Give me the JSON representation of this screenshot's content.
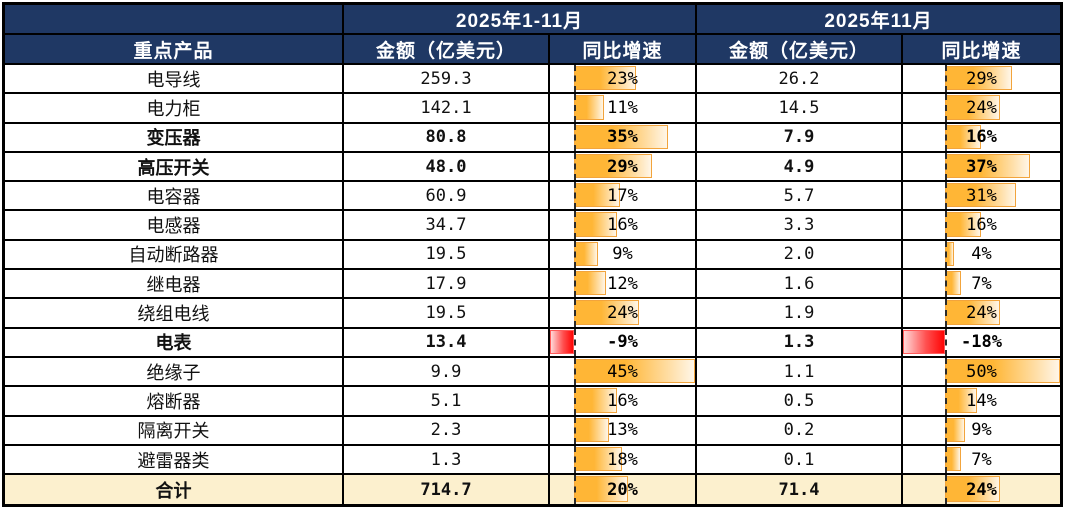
{
  "header": {
    "corner": "",
    "period_ytd": "2025年1-11月",
    "period_month": "2025年11月",
    "col_product": "重点产品",
    "col_amount_ytd": "金额（亿美元）",
    "col_growth_ytd": "同比增速",
    "col_amount_month": "金额（亿美元）",
    "col_growth_month": "同比增速"
  },
  "bars": {
    "ytd": {
      "min": -9,
      "max": 45
    },
    "month": {
      "min": -18,
      "max": 50
    }
  },
  "colors": {
    "header_bg": "#1F3864",
    "header_text": "#FFFFFF",
    "total_row_bg": "#FCF0CE",
    "positive_bar": "#FFB636",
    "positive_bar_border": "#F2A43C",
    "negative_bar": "#FF0505",
    "grid_border": "#000000"
  },
  "rows": [
    {
      "name": "电导线",
      "a1": "259.3",
      "g1": 23,
      "g1_label": "23%",
      "a2": "26.2",
      "g2": 29,
      "g2_label": "29%",
      "bold": false
    },
    {
      "name": "电力柜",
      "a1": "142.1",
      "g1": 11,
      "g1_label": "11%",
      "a2": "14.5",
      "g2": 24,
      "g2_label": "24%",
      "bold": false
    },
    {
      "name": "变压器",
      "a1": "80.8",
      "g1": 35,
      "g1_label": "35%",
      "a2": "7.9",
      "g2": 16,
      "g2_label": "16%",
      "bold": true
    },
    {
      "name": "高压开关",
      "a1": "48.0",
      "g1": 29,
      "g1_label": "29%",
      "a2": "4.9",
      "g2": 37,
      "g2_label": "37%",
      "bold": true
    },
    {
      "name": "电容器",
      "a1": "60.9",
      "g1": 17,
      "g1_label": "17%",
      "a2": "5.7",
      "g2": 31,
      "g2_label": "31%",
      "bold": false
    },
    {
      "name": "电感器",
      "a1": "34.7",
      "g1": 16,
      "g1_label": "16%",
      "a2": "3.3",
      "g2": 16,
      "g2_label": "16%",
      "bold": false
    },
    {
      "name": "自动断路器",
      "a1": "19.5",
      "g1": 9,
      "g1_label": "9%",
      "a2": "2.0",
      "g2": 4,
      "g2_label": "4%",
      "bold": false
    },
    {
      "name": "继电器",
      "a1": "17.9",
      "g1": 12,
      "g1_label": "12%",
      "a2": "1.6",
      "g2": 7,
      "g2_label": "7%",
      "bold": false
    },
    {
      "name": "绕组电线",
      "a1": "19.5",
      "g1": 24,
      "g1_label": "24%",
      "a2": "1.9",
      "g2": 24,
      "g2_label": "24%",
      "bold": false
    },
    {
      "name": "电表",
      "a1": "13.4",
      "g1": -9,
      "g1_label": "-9%",
      "a2": "1.3",
      "g2": -18,
      "g2_label": "-18%",
      "bold": true
    },
    {
      "name": "绝缘子",
      "a1": "9.9",
      "g1": 45,
      "g1_label": "45%",
      "a2": "1.1",
      "g2": 50,
      "g2_label": "50%",
      "bold": false
    },
    {
      "name": "熔断器",
      "a1": "5.1",
      "g1": 16,
      "g1_label": "16%",
      "a2": "0.5",
      "g2": 14,
      "g2_label": "14%",
      "bold": false
    },
    {
      "name": "隔离开关",
      "a1": "2.3",
      "g1": 13,
      "g1_label": "13%",
      "a2": "0.2",
      "g2": 9,
      "g2_label": "9%",
      "bold": false
    },
    {
      "name": "避雷器类",
      "a1": "1.3",
      "g1": 18,
      "g1_label": "18%",
      "a2": "0.1",
      "g2": 7,
      "g2_label": "7%",
      "bold": false
    }
  ],
  "total": {
    "name": "合计",
    "a1": "714.7",
    "g1": 20,
    "g1_label": "20%",
    "a2": "71.4",
    "g2": 24,
    "g2_label": "24%",
    "bold": true
  },
  "chart_data": {
    "type": "table",
    "title": "重点产品出口金额与同比增速",
    "column_groups": [
      "2025年1-11月",
      "2025年11月"
    ],
    "columns": [
      "重点产品",
      "金额（亿美元） 1-11月",
      "同比增速 1-11月",
      "金额（亿美元） 11月",
      "同比增速 11月"
    ],
    "databar_axis": {
      "ytd_growth_range_pct": [
        -9,
        45
      ],
      "month_growth_range_pct": [
        -18,
        50
      ]
    },
    "rows": [
      [
        "电导线",
        259.3,
        "23%",
        26.2,
        "29%"
      ],
      [
        "电力柜",
        142.1,
        "11%",
        14.5,
        "24%"
      ],
      [
        "变压器",
        80.8,
        "35%",
        7.9,
        "16%"
      ],
      [
        "高压开关",
        48.0,
        "29%",
        4.9,
        "37%"
      ],
      [
        "电容器",
        60.9,
        "17%",
        5.7,
        "31%"
      ],
      [
        "电感器",
        34.7,
        "16%",
        3.3,
        "16%"
      ],
      [
        "自动断路器",
        19.5,
        "9%",
        2.0,
        "4%"
      ],
      [
        "继电器",
        17.9,
        "12%",
        1.6,
        "7%"
      ],
      [
        "绕组电线",
        19.5,
        "24%",
        1.9,
        "24%"
      ],
      [
        "电表",
        13.4,
        "-9%",
        1.3,
        "-18%"
      ],
      [
        "绝缘子",
        9.9,
        "45%",
        1.1,
        "50%"
      ],
      [
        "熔断器",
        5.1,
        "16%",
        0.5,
        "14%"
      ],
      [
        "隔离开关",
        2.3,
        "13%",
        0.2,
        "9%"
      ],
      [
        "避雷器类",
        1.3,
        "18%",
        0.1,
        "7%"
      ],
      [
        "合计",
        714.7,
        "20%",
        71.4,
        "24%"
      ]
    ]
  }
}
